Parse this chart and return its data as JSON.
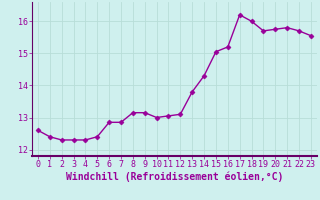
{
  "x": [
    0,
    1,
    2,
    3,
    4,
    5,
    6,
    7,
    8,
    9,
    10,
    11,
    12,
    13,
    14,
    15,
    16,
    17,
    18,
    19,
    20,
    21,
    22,
    23
  ],
  "y": [
    12.6,
    12.4,
    12.3,
    12.3,
    12.3,
    12.4,
    12.85,
    12.85,
    13.15,
    13.15,
    13.0,
    13.05,
    13.1,
    13.8,
    14.3,
    15.05,
    15.2,
    16.2,
    16.0,
    15.7,
    15.75,
    15.8,
    15.7,
    15.55
  ],
  "line_color": "#990099",
  "marker": "D",
  "marker_size": 2.5,
  "background_color": "#cff0ee",
  "grid_color": "#b8ddd8",
  "xlabel": "Windchill (Refroidissement éolien,°C)",
  "xlabel_color": "#990099",
  "tick_color": "#990099",
  "ylim": [
    11.8,
    16.6
  ],
  "yticks": [
    12,
    13,
    14,
    15,
    16
  ],
  "xlim": [
    -0.5,
    23.5
  ],
  "xticks": [
    0,
    1,
    2,
    3,
    4,
    5,
    6,
    7,
    8,
    9,
    10,
    11,
    12,
    13,
    14,
    15,
    16,
    17,
    18,
    19,
    20,
    21,
    22,
    23
  ],
  "xlabel_fontsize": 7,
  "tick_fontsize": 6,
  "line_width": 1.0,
  "spine_color": "#660066",
  "bottom_spine_color": "#660066"
}
